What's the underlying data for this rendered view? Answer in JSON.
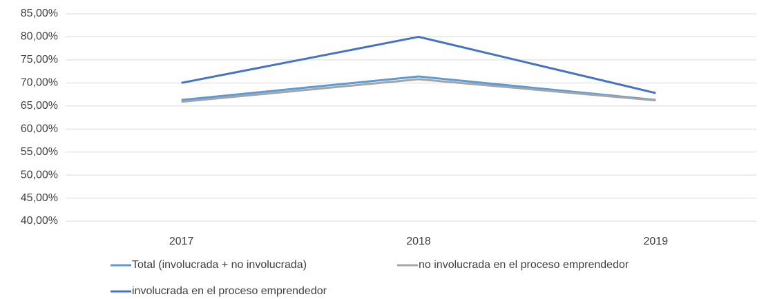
{
  "chart_data": {
    "type": "line",
    "categories": [
      "2017",
      "2018",
      "2019"
    ],
    "series": [
      {
        "name": "Total (involucrada + no involucrada)",
        "color": "#5b9bd5",
        "values": [
          66.3,
          71.4,
          66.3
        ]
      },
      {
        "name": "no involucrada en el proceso emprendedor",
        "color": "#a5a5a5",
        "values": [
          65.9,
          70.8,
          66.2
        ]
      },
      {
        "name": "involucrada en el proceso emprendedor",
        "color": "#4472c4",
        "values": [
          70.0,
          80.0,
          67.8
        ]
      }
    ],
    "ylim": [
      40,
      85
    ],
    "yticks": [
      {
        "value": 40,
        "label": "40,00%"
      },
      {
        "value": 45,
        "label": "45,00%"
      },
      {
        "value": 50,
        "label": "50,00%"
      },
      {
        "value": 55,
        "label": "55,00%"
      },
      {
        "value": 60,
        "label": "60,00%"
      },
      {
        "value": 65,
        "label": "65,00%"
      },
      {
        "value": 70,
        "label": "70,00%"
      },
      {
        "value": 75,
        "label": "75,00%"
      },
      {
        "value": 80,
        "label": "80,00%"
      },
      {
        "value": 85,
        "label": "85,00%"
      }
    ],
    "grid": true,
    "legend": "bottom"
  }
}
